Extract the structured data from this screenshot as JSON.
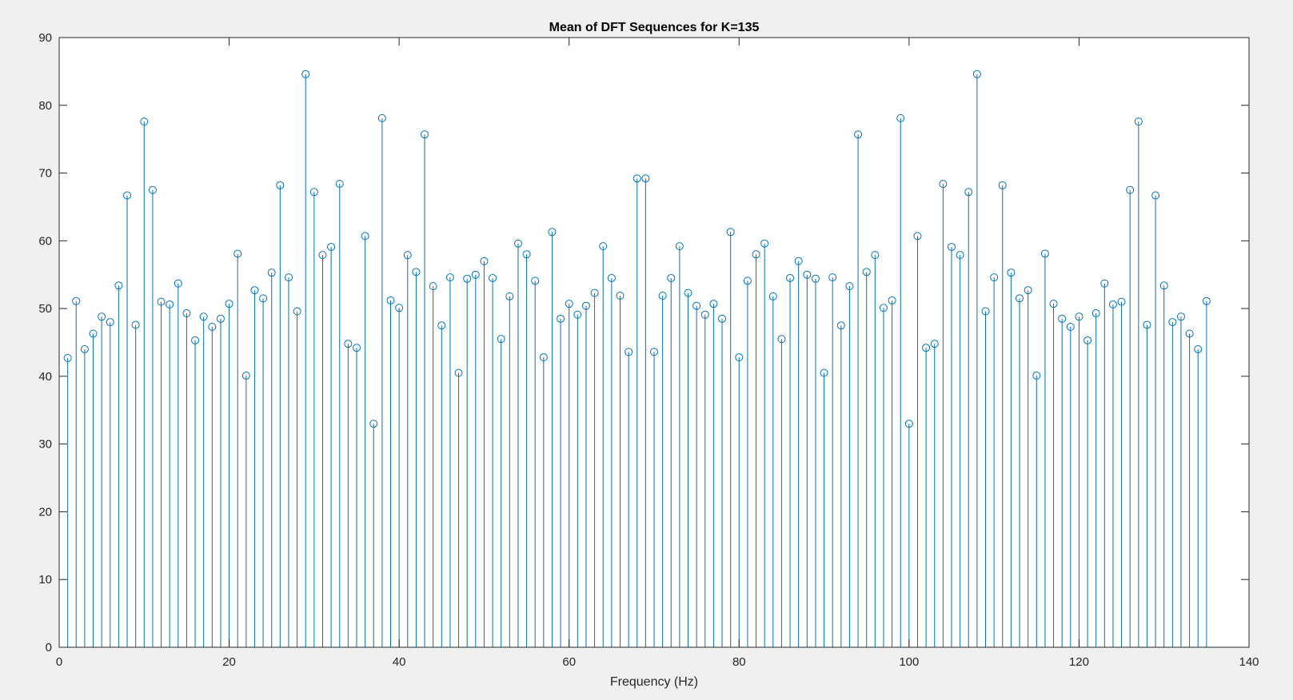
{
  "chart_data": {
    "type": "stem",
    "title": "Mean of DFT Sequences for K=135",
    "xlabel": "Frequency (Hz)",
    "ylabel": "",
    "xlim": [
      0,
      140
    ],
    "ylim": [
      0,
      90
    ],
    "xticks": [
      "0",
      "20",
      "40",
      "60",
      "80",
      "100",
      "120",
      "140"
    ],
    "yticks": [
      "0",
      "10",
      "20",
      "30",
      "40",
      "50",
      "60",
      "70",
      "80",
      "90"
    ],
    "grid": false,
    "marker": "circle",
    "color": "#0072bd",
    "x": [
      1,
      2,
      3,
      4,
      5,
      6,
      7,
      8,
      9,
      10,
      11,
      12,
      13,
      14,
      15,
      16,
      17,
      18,
      19,
      20,
      21,
      22,
      23,
      24,
      25,
      26,
      27,
      28,
      29,
      30,
      31,
      32,
      33,
      34,
      35,
      36,
      37,
      38,
      39,
      40,
      41,
      42,
      43,
      44,
      45,
      46,
      47,
      48,
      49,
      50,
      51,
      52,
      53,
      54,
      55,
      56,
      57,
      58,
      59,
      60,
      61,
      62,
      63,
      64,
      65,
      66,
      67,
      68,
      69,
      70,
      71,
      72,
      73,
      74,
      75,
      76,
      77,
      78,
      79,
      80,
      81,
      82,
      83,
      84,
      85,
      86,
      87,
      88,
      89,
      90,
      91,
      92,
      93,
      94,
      95,
      96,
      97,
      98,
      99,
      100,
      101,
      102,
      103,
      104,
      105,
      106,
      107,
      108,
      109,
      110,
      111,
      112,
      113,
      114,
      115,
      116,
      117,
      118,
      119,
      120,
      121,
      122,
      123,
      124,
      125,
      126,
      127,
      128,
      129,
      130,
      131,
      132,
      133,
      134,
      135
    ],
    "values": [
      42.7,
      51.1,
      44.0,
      46.3,
      48.8,
      48.0,
      53.4,
      66.7,
      47.6,
      77.6,
      67.5,
      51.0,
      50.6,
      53.7,
      49.3,
      45.3,
      48.8,
      47.3,
      48.5,
      50.7,
      58.1,
      40.1,
      52.7,
      51.5,
      55.3,
      68.2,
      54.6,
      49.6,
      84.6,
      67.2,
      57.9,
      59.1,
      68.4,
      44.8,
      44.2,
      60.7,
      33.0,
      78.1,
      51.2,
      50.1,
      57.9,
      55.4,
      75.7,
      53.3,
      47.5,
      54.6,
      40.5,
      54.4,
      55.0,
      57.0,
      54.5,
      45.5,
      51.8,
      59.6,
      58.0,
      54.1,
      42.8,
      61.3,
      48.5,
      50.7,
      49.1,
      50.4,
      52.3,
      59.2,
      54.5,
      51.9,
      43.6,
      69.2,
      69.2,
      43.6,
      51.9,
      54.5,
      59.2,
      52.3,
      50.4,
      49.1,
      50.7,
      48.5,
      61.3,
      42.8,
      54.1,
      58.0,
      59.6,
      51.8,
      45.5,
      54.5,
      57.0,
      55.0,
      54.4,
      40.5,
      54.6,
      47.5,
      53.3,
      75.7,
      55.4,
      57.9,
      50.1,
      51.2,
      78.1,
      33.0,
      60.7,
      44.2,
      44.8,
      68.4,
      59.1,
      57.9,
      67.2,
      84.6,
      49.6,
      54.6,
      68.2,
      55.3,
      51.5,
      52.7,
      40.1,
      58.1,
      50.7,
      48.5,
      47.3,
      48.8,
      45.3,
      49.3,
      53.7,
      50.6,
      51.0,
      67.5,
      77.6,
      47.6,
      66.7,
      53.4,
      48.0,
      48.8,
      46.3,
      44.0,
      51.1
    ]
  }
}
